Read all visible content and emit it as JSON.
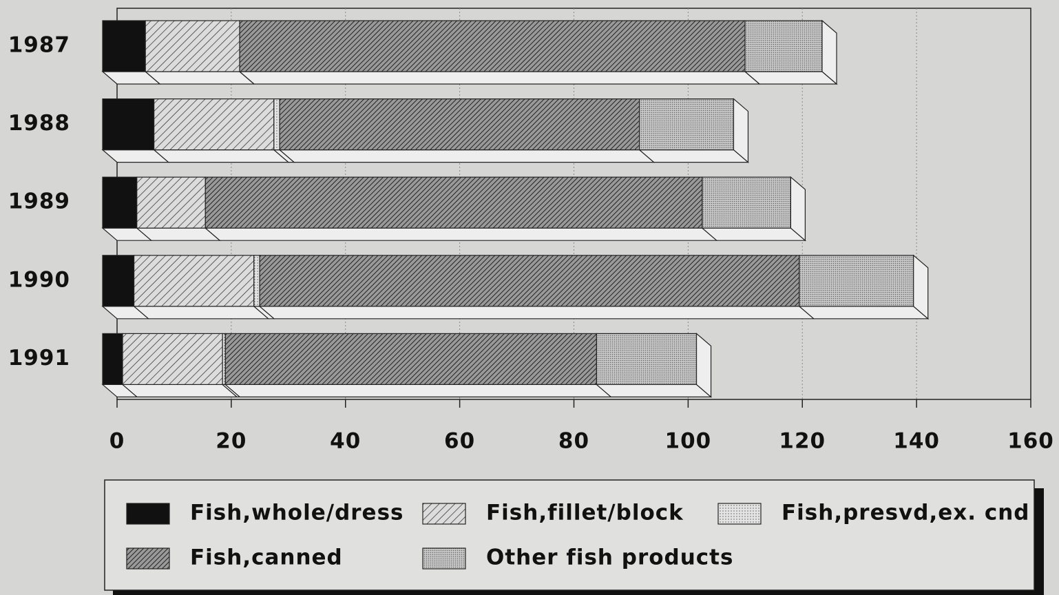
{
  "chart_data": {
    "type": "bar",
    "orientation": "horizontal",
    "stacked": true,
    "categories": [
      "1987",
      "1988",
      "1989",
      "1990",
      "1991"
    ],
    "series": [
      {
        "name": "Fish,whole/dress",
        "color": "#111111",
        "values": [
          7.5,
          9,
          6,
          5.5,
          3.5
        ]
      },
      {
        "name": "Fish,fillet/block",
        "color": "#d0d0d0",
        "values": [
          16.5,
          21,
          12,
          21,
          17.5
        ]
      },
      {
        "name": "Fish,presvd,ex. cnd",
        "color": "#e2e2e2",
        "values": [
          0,
          1,
          0,
          1,
          0.5
        ]
      },
      {
        "name": "Fish,canned",
        "color": "#7c7c7c",
        "values": [
          88.5,
          63,
          87,
          94.5,
          65
        ]
      },
      {
        "name": "Other fish products",
        "color": "#bdbdbd",
        "values": [
          13.5,
          16.5,
          15.5,
          20,
          17.5
        ]
      }
    ],
    "xlim": [
      0,
      160
    ],
    "xticks": [
      0,
      20,
      40,
      60,
      80,
      100,
      120,
      140,
      160
    ],
    "grid": true
  }
}
